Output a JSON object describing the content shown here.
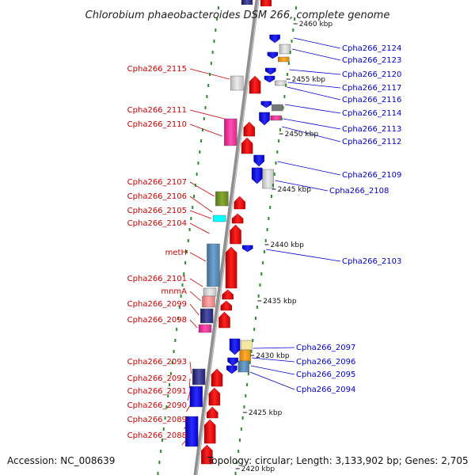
{
  "title": "Chlorobium phaeobacteroides DSM 266, complete genome",
  "accession": "Accession: NC_008639",
  "summary": "Topology: circular; Length: 3,133,902 bp; Genes: 2,705",
  "colors": {
    "backbone": "#8f8f8f",
    "forward_label": "#cc0000",
    "reverse_label": "#0000cc",
    "tick_dot": "#2e8b2e",
    "forward_arrow": "#ff0000",
    "reverse_arrow": "#0000ff"
  },
  "kbp_labels": [
    "2460 kbp",
    "2455 kbp",
    "2450 kbp",
    "2445 kbp",
    "2440 kbp",
    "2435 kbp",
    "2430 kbp",
    "2425 kbp",
    "2420 kbp"
  ],
  "left_labels": [
    "Cpha266_2115",
    "Cpha266_2111",
    "Cpha266_2110",
    "Cpha266_2107",
    "Cpha266_2106",
    "Cpha266_2105",
    "Cpha266_2104",
    "metH",
    "Cpha266_2101",
    "mnmA",
    "Cpha266_2099",
    "Cpha266_2098",
    "Cpha266_2093",
    "Cpha266_2092",
    "Cpha266_2091",
    "Cpha266_2090",
    "Cpha266_2089",
    "Cpha266_2088"
  ],
  "right_labels": [
    "Cpha266_2124",
    "Cpha266_2123",
    "Cpha266_2120",
    "Cpha266_2117",
    "Cpha266_2116",
    "Cpha266_2114",
    "Cpha266_2113",
    "Cpha266_2112",
    "Cpha266_2109",
    "Cpha266_2108",
    "Cpha266_2103",
    "Cpha266_2097",
    "Cpha266_2096",
    "Cpha266_2095",
    "Cpha266_2094"
  ]
}
